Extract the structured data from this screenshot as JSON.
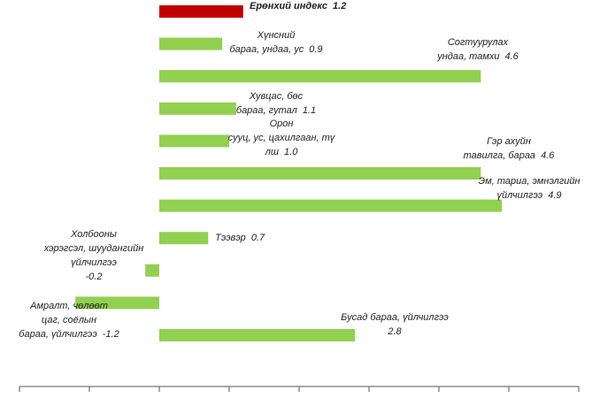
{
  "chart_data": {
    "type": "bar",
    "orientation": "horizontal",
    "categories": [
      [
        "Ерөнхий индекс"
      ],
      [
        "Хүнсний",
        "бараа, ундаа, ус"
      ],
      [
        "Согтуурулах",
        "ундаа, тамхи"
      ],
      [
        "Хувцас, бөс",
        "бараа, гутал"
      ],
      [
        "Орон",
        "сууц, ус, цахилгаан, тү",
        "лш"
      ],
      [
        "Гэр ахуйн",
        "тавилга, бараа"
      ],
      [
        "Эм, тариа, эмнэлгийн",
        "үйлчилгээ"
      ],
      [
        "Тээвэр"
      ],
      [
        "Холбооны",
        "хэрэгсэл, шуудангийн",
        "үйлчилгээ"
      ],
      [
        "Амралт, чөлөөт",
        "цаг, соёлын",
        "бараа, үйлчилгээ"
      ],
      [
        "Бусад бараа, үйлчилгээ"
      ]
    ],
    "values": [
      1.2,
      0.9,
      4.6,
      1.1,
      1.0,
      4.6,
      4.9,
      0.7,
      -0.2,
      -1.2,
      2.8
    ],
    "value_labels": [
      "1.2",
      "0.9",
      "4.6",
      "1.1",
      "1.0",
      "4.6",
      "4.9",
      "0.7",
      "-0.2",
      "-1.2",
      "2.8"
    ],
    "colors": [
      "#c00000",
      "#92d050",
      "#92d050",
      "#92d050",
      "#92d050",
      "#92d050",
      "#92d050",
      "#92d050",
      "#92d050",
      "#92d050",
      "#92d050"
    ],
    "xlim": [
      -2,
      6
    ],
    "xticks": [
      -2,
      -1,
      0,
      1,
      2,
      3,
      4,
      5,
      6
    ]
  }
}
